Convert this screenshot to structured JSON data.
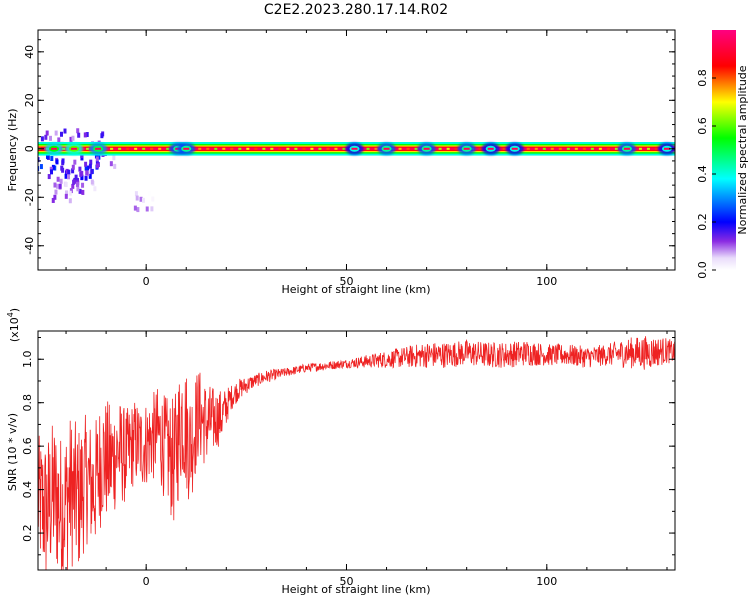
{
  "title": "C2E2.2023.280.17.14.R02",
  "chart_data": [
    {
      "type": "heatmap",
      "xlabel": "Height of straight line (km)",
      "ylabel": "Frequency (Hz)",
      "xlim": [
        -27,
        132
      ],
      "ylim": [
        -50,
        49
      ],
      "x_ticks": [
        0,
        50,
        100
      ],
      "y_ticks": [
        40,
        20,
        0,
        -20,
        -40
      ],
      "colorbar": {
        "label": "Normalized spectral amplitude",
        "range": [
          0.0,
          1.0
        ],
        "ticks": [
          "0.0",
          "0.2",
          "0.4",
          "0.6",
          "0.8"
        ],
        "colors": [
          "#ffffff",
          "#e9dcfb",
          "#8a2be2",
          "#0000ff",
          "#00ffff",
          "#00ff00",
          "#ffff00",
          "#ff0000",
          "#ff0080"
        ]
      },
      "ridge": {
        "frequency_hz": 0,
        "description_values": "continuous maximum amplitude band near 0 Hz across all heights",
        "peak_amplitude": 0.95,
        "band_halfwidth_hz": 2
      },
      "blobs": [
        {
          "x": -23,
          "y": 0,
          "a": 0.45
        },
        {
          "x": -18,
          "y": 0,
          "a": 0.5
        },
        {
          "x": -12,
          "y": 0,
          "a": 0.4
        },
        {
          "x": 8,
          "y": 0,
          "a": 0.35
        },
        {
          "x": 10,
          "y": 0,
          "a": 0.35
        },
        {
          "x": 52,
          "y": 0,
          "a": 0.3
        },
        {
          "x": 60,
          "y": 0,
          "a": 0.35
        },
        {
          "x": 70,
          "y": 0,
          "a": 0.35
        },
        {
          "x": 80,
          "y": 0,
          "a": 0.35
        },
        {
          "x": 86,
          "y": 0,
          "a": 0.3
        },
        {
          "x": 92,
          "y": 0,
          "a": 0.3
        },
        {
          "x": 120,
          "y": 0,
          "a": 0.35
        },
        {
          "x": 130,
          "y": 0,
          "a": 0.3
        }
      ],
      "scatter_noise": [
        {
          "x": -25,
          "y": -5,
          "a": 0.2
        },
        {
          "x": -22,
          "y": -8,
          "a": 0.15
        },
        {
          "x": -20,
          "y": -12,
          "a": 0.12
        },
        {
          "x": -18,
          "y": -15,
          "a": 0.1
        },
        {
          "x": -16,
          "y": -9,
          "a": 0.15
        },
        {
          "x": -14,
          "y": -6,
          "a": 0.18
        },
        {
          "x": -13,
          "y": 3,
          "a": 0.12
        },
        {
          "x": -19,
          "y": 4,
          "a": 0.12
        },
        {
          "x": -24,
          "y": 3,
          "a": 0.12
        },
        {
          "x": -21,
          "y": -18,
          "a": 0.08
        },
        {
          "x": -15,
          "y": -13,
          "a": 0.08
        },
        {
          "x": -10,
          "y": -4,
          "a": 0.1
        },
        {
          "x": -0.5,
          "y": -22,
          "a": 0.05
        }
      ]
    },
    {
      "type": "line",
      "xlabel": "Height of straight line (km)",
      "ylabel": "SNR (10 * v/v)",
      "y_multiplier_label": "(x10",
      "y_multiplier_exp": "4",
      "xlim": [
        -27,
        132
      ],
      "ylim": [
        0.03,
        1.13
      ],
      "x_ticks": [
        0,
        50,
        100
      ],
      "y_ticks": [
        0.2,
        0.4,
        0.6,
        0.8,
        1.0
      ],
      "y_tick_labels": [
        "0.2",
        "0.4",
        "0.6",
        "0.8",
        "1.0"
      ],
      "line_color": "#ee2222",
      "series": [
        {
          "x": [
            -27,
            -25,
            -23,
            -21,
            -19,
            -17,
            -15,
            -13,
            -11,
            -9,
            -7,
            -5,
            -3,
            -1,
            1,
            3,
            5,
            7,
            9,
            11,
            13,
            15,
            17,
            19,
            21,
            23,
            25,
            27,
            30,
            35,
            40,
            45,
            50,
            55,
            60,
            65,
            70,
            75,
            80,
            85,
            90,
            95,
            100,
            105,
            110,
            115,
            120,
            125,
            130,
            132
          ],
          "values": [
            0.35,
            0.3,
            0.38,
            0.3,
            0.4,
            0.35,
            0.45,
            0.4,
            0.55,
            0.52,
            0.58,
            0.55,
            0.62,
            0.6,
            0.63,
            0.66,
            0.58,
            0.52,
            0.75,
            0.6,
            0.75,
            0.7,
            0.72,
            0.74,
            0.82,
            0.86,
            0.88,
            0.9,
            0.92,
            0.94,
            0.96,
            0.97,
            0.98,
            0.99,
            1.0,
            1.01,
            1.02,
            1.02,
            1.03,
            1.02,
            1.02,
            1.03,
            1.02,
            1.02,
            1.01,
            1.02,
            1.03,
            1.03,
            1.04,
            1.03
          ],
          "noise_amplitude": [
            0.3,
            0.35,
            0.35,
            0.35,
            0.35,
            0.35,
            0.3,
            0.3,
            0.3,
            0.28,
            0.25,
            0.22,
            0.2,
            0.2,
            0.2,
            0.22,
            0.25,
            0.3,
            0.3,
            0.28,
            0.22,
            0.2,
            0.15,
            0.12,
            0.06,
            0.05,
            0.04,
            0.03,
            0.03,
            0.02,
            0.02,
            0.02,
            0.02,
            0.03,
            0.04,
            0.05,
            0.06,
            0.06,
            0.06,
            0.06,
            0.06,
            0.06,
            0.05,
            0.05,
            0.05,
            0.05,
            0.07,
            0.08,
            0.06,
            0.05
          ]
        }
      ]
    }
  ]
}
